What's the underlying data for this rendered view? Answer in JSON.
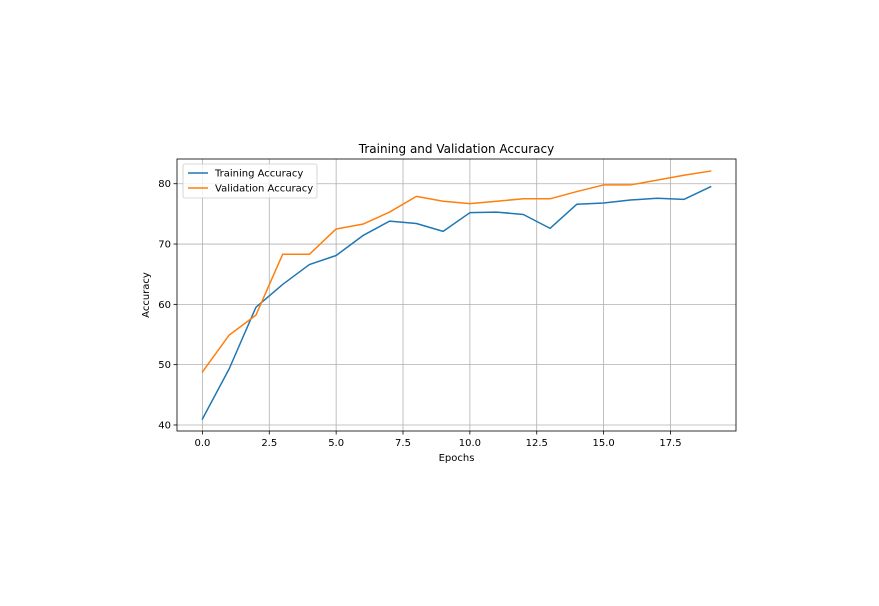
{
  "chart_data": {
    "type": "line",
    "title": "Training and Validation Accuracy",
    "xlabel": "Epochs",
    "ylabel": "Accuracy",
    "xlim": [
      -0.95,
      19.95
    ],
    "ylim": [
      39.0,
      84.1
    ],
    "xticks": [
      0.0,
      2.5,
      5.0,
      7.5,
      10.0,
      12.5,
      15.0,
      17.5
    ],
    "xtick_labels": [
      "0.0",
      "2.5",
      "5.0",
      "7.5",
      "10.0",
      "12.5",
      "15.0",
      "17.5"
    ],
    "yticks": [
      40,
      50,
      60,
      70,
      80
    ],
    "ytick_labels": [
      "40",
      "50",
      "60",
      "70",
      "80"
    ],
    "grid": true,
    "legend_position": "upper-left",
    "x": [
      0,
      1,
      2,
      3,
      4,
      5,
      6,
      7,
      8,
      9,
      10,
      11,
      12,
      13,
      14,
      15,
      16,
      17,
      18,
      19
    ],
    "series": [
      {
        "name": "Training Accuracy",
        "color": "#1f77b4",
        "values": [
          41.0,
          49.3,
          59.5,
          63.3,
          66.6,
          68.1,
          71.4,
          73.8,
          73.4,
          72.1,
          75.2,
          75.3,
          74.9,
          72.6,
          76.6,
          76.8,
          77.3,
          77.6,
          77.4,
          79.5
        ]
      },
      {
        "name": "Validation Accuracy",
        "color": "#ff7f0e",
        "values": [
          48.8,
          54.9,
          58.2,
          68.3,
          68.3,
          72.5,
          73.3,
          75.3,
          77.9,
          77.1,
          76.7,
          77.1,
          77.5,
          77.5,
          78.7,
          79.8,
          79.8,
          80.6,
          81.4,
          82.1
        ]
      }
    ]
  }
}
